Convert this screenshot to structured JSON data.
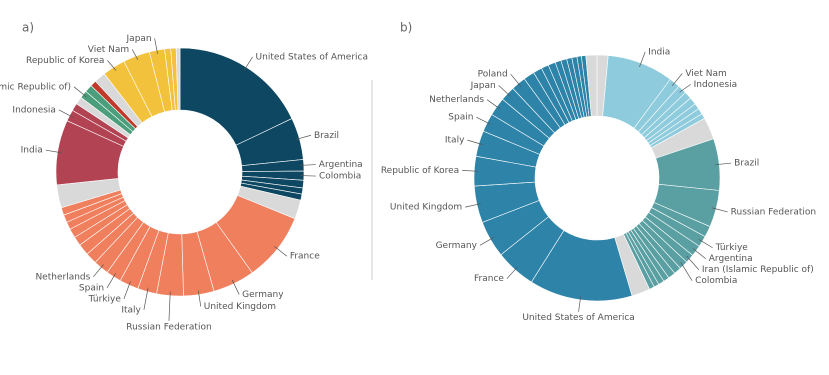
{
  "chart_data": [
    {
      "type": "pie",
      "panel_label": "a)",
      "categories": [
        "United States of America",
        "Brazil",
        "Argentina",
        "Colombia",
        null,
        null,
        null,
        null,
        "France",
        "Germany",
        "United Kingdom",
        "Russian Federation",
        "Italy",
        "Türkiye",
        "Spain",
        "Netherlands",
        null,
        null,
        null,
        null,
        null,
        null,
        null,
        null,
        "India",
        "Indonesia",
        null,
        null,
        "Iran (Islamic Republic of)",
        null,
        null,
        null,
        "Republic of Korea",
        "Viet Nam",
        "Japan",
        null,
        null,
        null
      ],
      "values": [
        18,
        5.5,
        1.5,
        1.2,
        1,
        0.8,
        0.8,
        2.5,
        9,
        5.5,
        4,
        3.5,
        2.5,
        2.5,
        2,
        2,
        1.5,
        1.5,
        1.2,
        1.2,
        1,
        1,
        1,
        3,
        8.5,
        1.5,
        1,
        1,
        1,
        1,
        0.8,
        1.5,
        3,
        3.5,
        2,
        0.8,
        0.7,
        0.5
      ],
      "colors": [
        "#0d4761",
        "#0d4761",
        "#0d4761",
        "#0d4761",
        "#0d4761",
        "#0d4761",
        "#0d4761",
        "#d9d9d9",
        "#f07f5e",
        "#f07f5e",
        "#f07f5e",
        "#f07f5e",
        "#f07f5e",
        "#f07f5e",
        "#f07f5e",
        "#f07f5e",
        "#f07f5e",
        "#f07f5e",
        "#f07f5e",
        "#f07f5e",
        "#f07f5e",
        "#f07f5e",
        "#f07f5e",
        "#d9d9d9",
        "#b24353",
        "#b24353",
        "#b24353",
        "#d9d9d9",
        "#4a9e7b",
        "#4a9e7b",
        "#c0392b",
        "#d9d9d9",
        "#f3c23c",
        "#f3c23c",
        "#f3c23c",
        "#f3c23c",
        "#f3c23c",
        "#d9d9d9"
      ]
    },
    {
      "type": "pie",
      "panel_label": "b)",
      "categories": [
        null,
        "India",
        "Viet Nam",
        "Indonesia",
        null,
        null,
        null,
        null,
        null,
        null,
        "Brazil",
        "Russian Federation",
        null,
        "Türkiye",
        "Argentina",
        "Iran (Islamic Republic of)",
        "Colombia",
        null,
        null,
        null,
        null,
        null,
        null,
        null,
        "United States of America",
        "France",
        "Germany",
        "United Kingdom",
        "Republic of Korea",
        "Italy",
        "Spain",
        "Netherlands",
        "Japan",
        "Poland",
        null,
        null,
        null,
        null,
        null,
        null,
        null,
        null,
        null,
        null,
        null
      ],
      "values": [
        1.5,
        9,
        1.5,
        1.2,
        1,
        1,
        0.8,
        0.8,
        0.7,
        3,
        7,
        5,
        1.5,
        1.5,
        1.5,
        1.2,
        1.2,
        1,
        1,
        0.8,
        0.8,
        0.7,
        0.7,
        2.5,
        14,
        5.5,
        5,
        5,
        4,
        3.5,
        2.5,
        2.5,
        2,
        2,
        1.5,
        1.2,
        1,
        1,
        0.8,
        0.8,
        0.7,
        0.7,
        0.6,
        0.6,
        1.5
      ],
      "colors": [
        "#d9d9d9",
        "#8ecbdc",
        "#8ecbdc",
        "#8ecbdc",
        "#8ecbdc",
        "#8ecbdc",
        "#8ecbdc",
        "#8ecbdc",
        "#8ecbdc",
        "#d9d9d9",
        "#5aa0a3",
        "#5aa0a3",
        "#5aa0a3",
        "#5aa0a3",
        "#5aa0a3",
        "#5aa0a3",
        "#5aa0a3",
        "#5aa0a3",
        "#5aa0a3",
        "#5aa0a3",
        "#5aa0a3",
        "#5aa0a3",
        "#5aa0a3",
        "#d9d9d9",
        "#2e83a8",
        "#2e83a8",
        "#2e83a8",
        "#2e83a8",
        "#2e83a8",
        "#2e83a8",
        "#2e83a8",
        "#2e83a8",
        "#2e83a8",
        "#2e83a8",
        "#2e83a8",
        "#2e83a8",
        "#2e83a8",
        "#2e83a8",
        "#2e83a8",
        "#2e83a8",
        "#2e83a8",
        "#2e83a8",
        "#2e83a8",
        "#2e83a8",
        "#d9d9d9"
      ]
    }
  ]
}
